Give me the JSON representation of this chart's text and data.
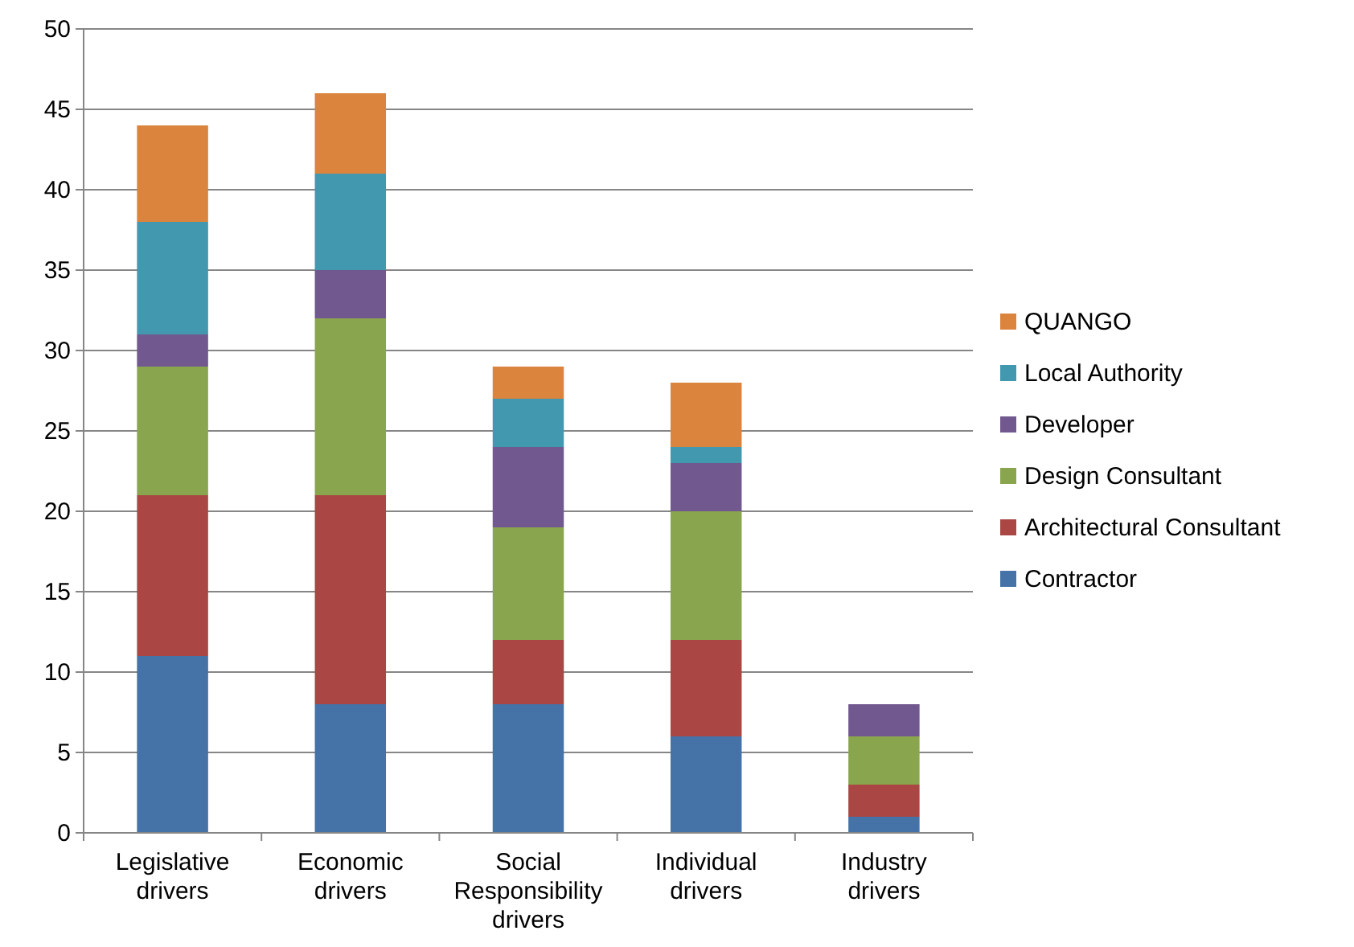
{
  "chart_data": {
    "type": "bar",
    "stacked": true,
    "categories": [
      "Legislative drivers",
      "Economic drivers",
      "Social Responsibility drivers",
      "Individual drivers",
      "Industry drivers"
    ],
    "series": [
      {
        "name": "Contractor",
        "color": "#4572a7",
        "values": [
          11,
          8,
          8,
          6,
          1
        ]
      },
      {
        "name": "Architectural Consultant",
        "color": "#aa4643",
        "values": [
          10,
          13,
          4,
          6,
          2
        ]
      },
      {
        "name": "Design Consultant",
        "color": "#89a54e",
        "values": [
          8,
          11,
          7,
          8,
          3
        ]
      },
      {
        "name": "Developer",
        "color": "#71588f",
        "values": [
          2,
          3,
          5,
          3,
          2
        ]
      },
      {
        "name": "Local Authority",
        "color": "#4198af",
        "values": [
          7,
          6,
          3,
          1,
          0
        ]
      },
      {
        "name": "QUANGO",
        "color": "#db843d",
        "values": [
          6,
          5,
          2,
          4,
          0
        ]
      }
    ],
    "ylim": [
      0,
      50
    ],
    "yticks": [
      0,
      5,
      10,
      15,
      20,
      25,
      30,
      35,
      40,
      45,
      50
    ],
    "grid": "y",
    "legend": "right"
  }
}
